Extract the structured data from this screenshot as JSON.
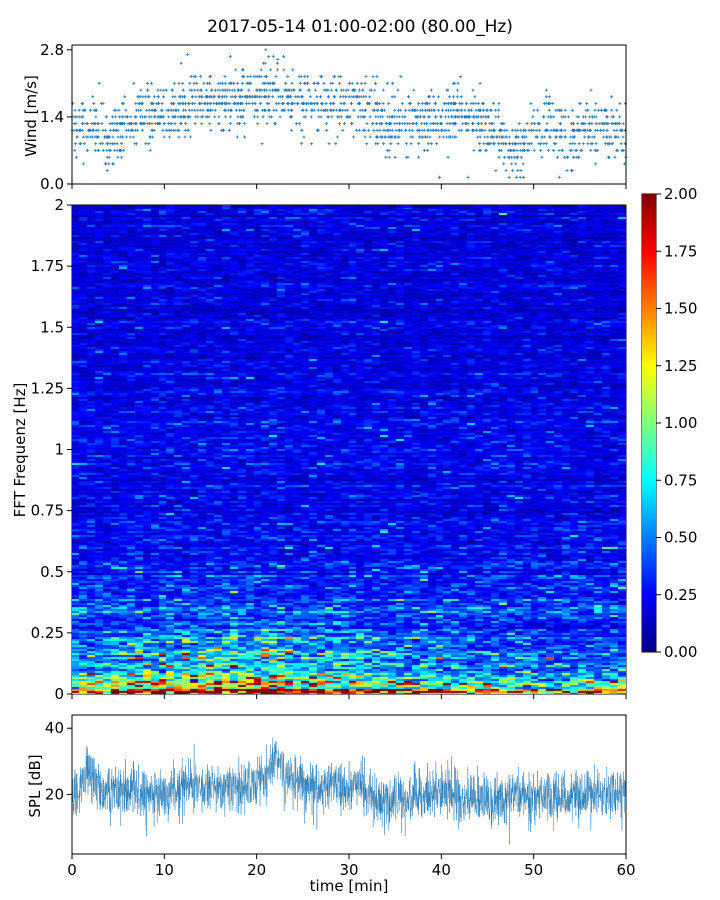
{
  "title": "2017-05-14 01:00-02:00 (80.00_Hz)",
  "chart_data": [
    {
      "type": "scatter",
      "panel": "wind",
      "ylabel": "Wind [m/s]",
      "xlabel": "",
      "xlim": [
        0,
        60
      ],
      "ylim": [
        0,
        2.9
      ],
      "yticks": [
        0.0,
        1.4,
        2.8
      ],
      "ytick_labels": [
        "0.0",
        "1.4",
        "2.8"
      ],
      "marker": "+",
      "color": "#1f77b4",
      "resolution_mps": 0.14,
      "trend": {
        "x": [
          0,
          2,
          4,
          6,
          8,
          10,
          12,
          14,
          16,
          18,
          20,
          22,
          24,
          26,
          28,
          30,
          32,
          34,
          36,
          38,
          40,
          42,
          44,
          46,
          48,
          50,
          52,
          54,
          56,
          58,
          60
        ],
        "y": [
          1.1,
          1.3,
          0.8,
          1.2,
          1.6,
          1.5,
          1.6,
          1.8,
          1.7,
          1.8,
          1.9,
          2.0,
          1.8,
          1.7,
          1.6,
          1.7,
          1.6,
          1.2,
          1.3,
          1.3,
          1.4,
          1.5,
          1.3,
          1.1,
          0.6,
          1.1,
          1.2,
          1.0,
          1.2,
          1.2,
          1.1
        ]
      },
      "peaks": [
        {
          "x": 12.5,
          "y": 2.7
        },
        {
          "x": 21,
          "y": 2.8
        },
        {
          "x": 22.3,
          "y": 2.6
        }
      ]
    },
    {
      "type": "heatmap",
      "panel": "spectrogram",
      "ylabel": "FFT Frequenz [Hz]",
      "xlabel": "",
      "xlim": [
        0,
        60
      ],
      "ylim": [
        0,
        2
      ],
      "yticks": [
        0,
        0.25,
        0.5,
        0.75,
        1,
        1.25,
        1.5,
        1.75,
        2
      ],
      "ytick_labels": [
        "0",
        "0.25",
        "0.5",
        "0.75",
        "1",
        "1.25",
        "1.5",
        "1.75",
        "2"
      ],
      "colormap": "jet",
      "clim": [
        0.0,
        2.0
      ],
      "colorbar_ticks": [
        0.0,
        0.25,
        0.5,
        0.75,
        1.0,
        1.25,
        1.5,
        1.75,
        2.0
      ],
      "colorbar_tick_labels": [
        "0.00",
        "0.25",
        "0.50",
        "0.75",
        "1.00",
        "1.25",
        "1.50",
        "1.75",
        "2.00"
      ],
      "profile": {
        "freq": [
          0.0,
          0.02,
          0.05,
          0.08,
          0.12,
          0.18,
          0.25,
          0.35,
          0.5,
          0.8,
          1.2,
          1.6,
          2.0
        ],
        "mean": [
          1.7,
          1.3,
          1.0,
          0.8,
          0.65,
          0.5,
          0.42,
          0.33,
          0.27,
          0.22,
          0.2,
          0.19,
          0.18
        ]
      },
      "time_modulation": {
        "x": [
          0,
          5,
          10,
          15,
          20,
          22,
          25,
          30,
          33,
          35,
          40,
          45,
          50,
          55,
          60
        ],
        "factor": [
          0.9,
          1.0,
          1.1,
          1.2,
          1.25,
          1.3,
          1.1,
          1.05,
          0.95,
          0.85,
          0.9,
          0.8,
          0.75,
          0.7,
          0.8
        ]
      }
    },
    {
      "type": "line",
      "panel": "spl",
      "ylabel": "SPL [dB]",
      "xlabel": "time [min]",
      "xlim": [
        0,
        60
      ],
      "ylim": [
        2,
        44
      ],
      "yticks": [
        20,
        40
      ],
      "ytick_labels": [
        "20",
        "40"
      ],
      "xticks": [
        0,
        10,
        20,
        30,
        40,
        50,
        60
      ],
      "xtick_labels": [
        "0",
        "10",
        "20",
        "30",
        "40",
        "50",
        "60"
      ],
      "color": "#1f77b4",
      "trend": {
        "x": [
          0,
          1,
          2,
          3,
          5,
          8,
          10,
          12,
          15,
          18,
          20,
          21,
          22,
          23,
          25,
          28,
          30,
          31,
          32,
          33,
          35,
          38,
          40,
          42,
          45,
          48,
          50,
          52,
          55,
          58,
          60
        ],
        "y": [
          18,
          24,
          27,
          20,
          22,
          20,
          21,
          22,
          22,
          22,
          23,
          25,
          33,
          26,
          23,
          22,
          22,
          23,
          21,
          18,
          18,
          19,
          21,
          19,
          18,
          20,
          20,
          19,
          19,
          20,
          21
        ]
      },
      "spread_db": 5
    }
  ]
}
